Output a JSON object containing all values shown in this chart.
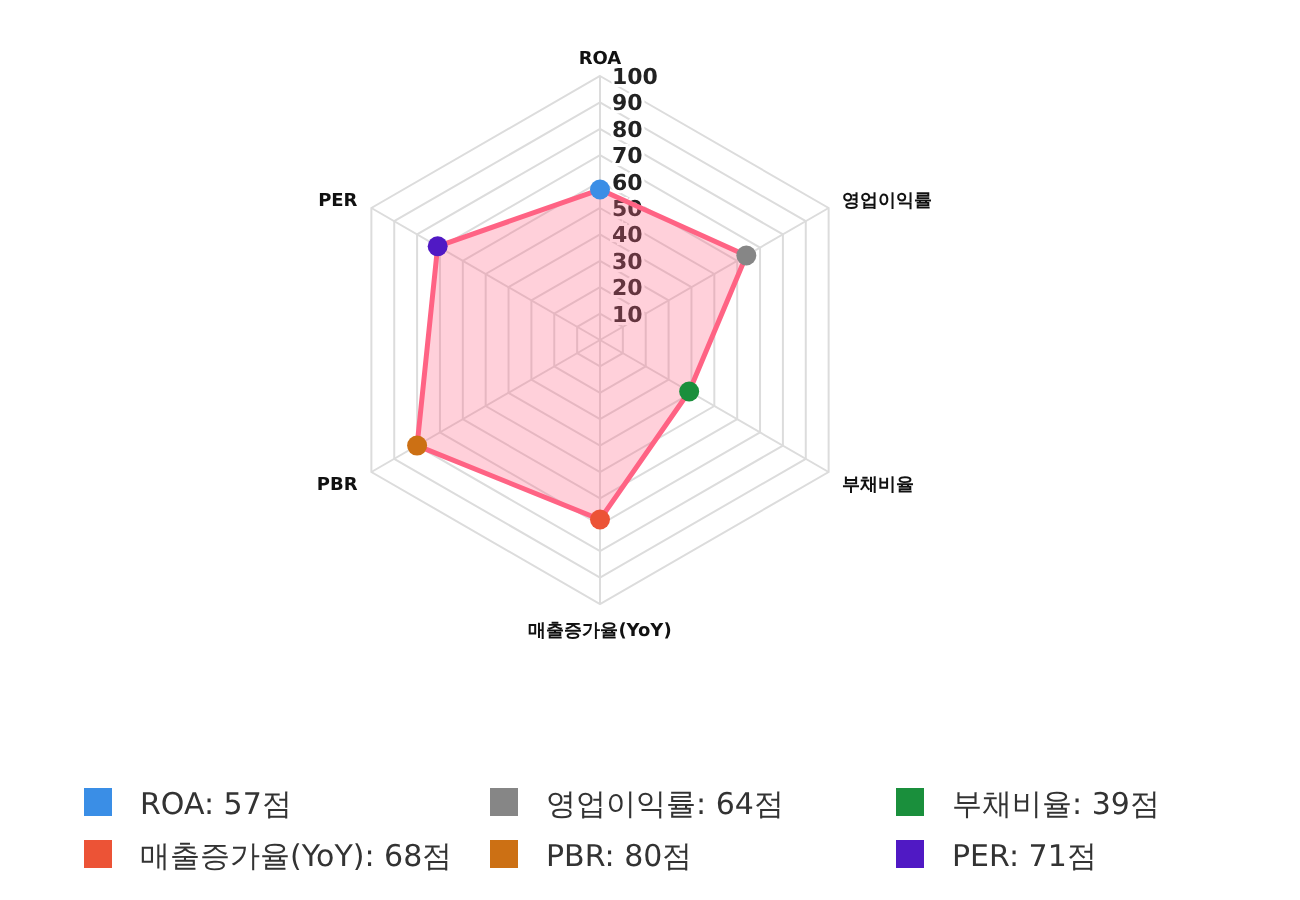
{
  "chart_data": {
    "type": "radar",
    "categories": [
      "ROA",
      "영업이익률",
      "부채비율",
      "매출증가율(YoY)",
      "PBR",
      "PER"
    ],
    "series": [
      {
        "color": "#ff6384",
        "values": [
          57,
          64,
          39,
          68,
          80,
          71
        ]
      }
    ],
    "colors": [
      "#3a8ee6",
      "#868686",
      "#1a8f3c",
      "#ec5336",
      "#cc7014",
      "#5019c4"
    ],
    "value_labels": [
      "ROA: 57점",
      "영업이익률: 64점",
      "부채비율: 39점",
      "매출증가율(YoY): 68점",
      "PBR: 80점",
      "PER: 71점"
    ],
    "ylim": [
      0,
      100
    ],
    "yticks": [
      10,
      20,
      30,
      40,
      50,
      60,
      70,
      80,
      90,
      100
    ],
    "marker": "circle",
    "grid": true
  }
}
